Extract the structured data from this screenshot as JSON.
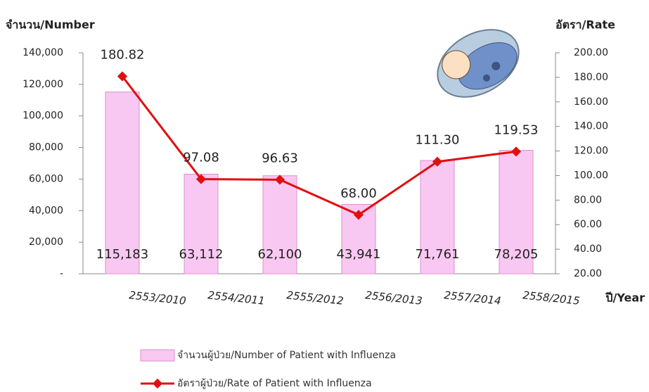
{
  "chart_data": {
    "type": "bar",
    "y_label": "จำนวน/Number",
    "y2_label": "อัตรา/Rate",
    "x_label": "ปี/Year",
    "categories": [
      "2553/2010",
      "2554/2011",
      "2555/2012",
      "2556/2013",
      "2557/2014",
      "2558/2015"
    ],
    "series": [
      {
        "name": "จำนวนผู้ป่วย/Number of Patient with Influenza",
        "type": "bar",
        "color": "#f9c8f2",
        "values": [
          115183,
          63112,
          62100,
          43941,
          71761,
          78205
        ],
        "value_labels": [
          "115,183",
          "63,112",
          "62,100",
          "43,941",
          "71,761",
          "78,205"
        ]
      },
      {
        "name": "อัตราผู้ป่วย/Rate of Patient with Influenza",
        "type": "line",
        "axis": "y2",
        "color": "#e01010",
        "values": [
          180.82,
          97.08,
          96.63,
          68.0,
          111.3,
          119.53
        ],
        "value_labels": [
          "180.82",
          "97.08",
          "96.63",
          "68.00",
          "111.30",
          "119.53"
        ]
      }
    ],
    "ylim": [
      0,
      140000
    ],
    "yticks": [
      {
        "value": 0,
        "label": "-"
      },
      {
        "value": 20000,
        "label": "20,000"
      },
      {
        "value": 40000,
        "label": "40,000"
      },
      {
        "value": 60000,
        "label": "60,000"
      },
      {
        "value": 80000,
        "label": "80,000"
      },
      {
        "value": 100000,
        "label": "100,000"
      },
      {
        "value": 120000,
        "label": "120,000"
      },
      {
        "value": 140000,
        "label": "140,000"
      }
    ],
    "y2lim": [
      20,
      200
    ],
    "y2ticks": [
      {
        "value": 20,
        "label": "20.00"
      },
      {
        "value": 40,
        "label": "40.00"
      },
      {
        "value": 60,
        "label": "60.00"
      },
      {
        "value": 80,
        "label": "80.00"
      },
      {
        "value": 100,
        "label": "100.00"
      },
      {
        "value": 120,
        "label": "120.00"
      },
      {
        "value": 140,
        "label": "140.00"
      },
      {
        "value": 160,
        "label": "160.00"
      },
      {
        "value": 180,
        "label": "180.00"
      },
      {
        "value": 200,
        "label": "200.00"
      }
    ],
    "grid": false
  }
}
